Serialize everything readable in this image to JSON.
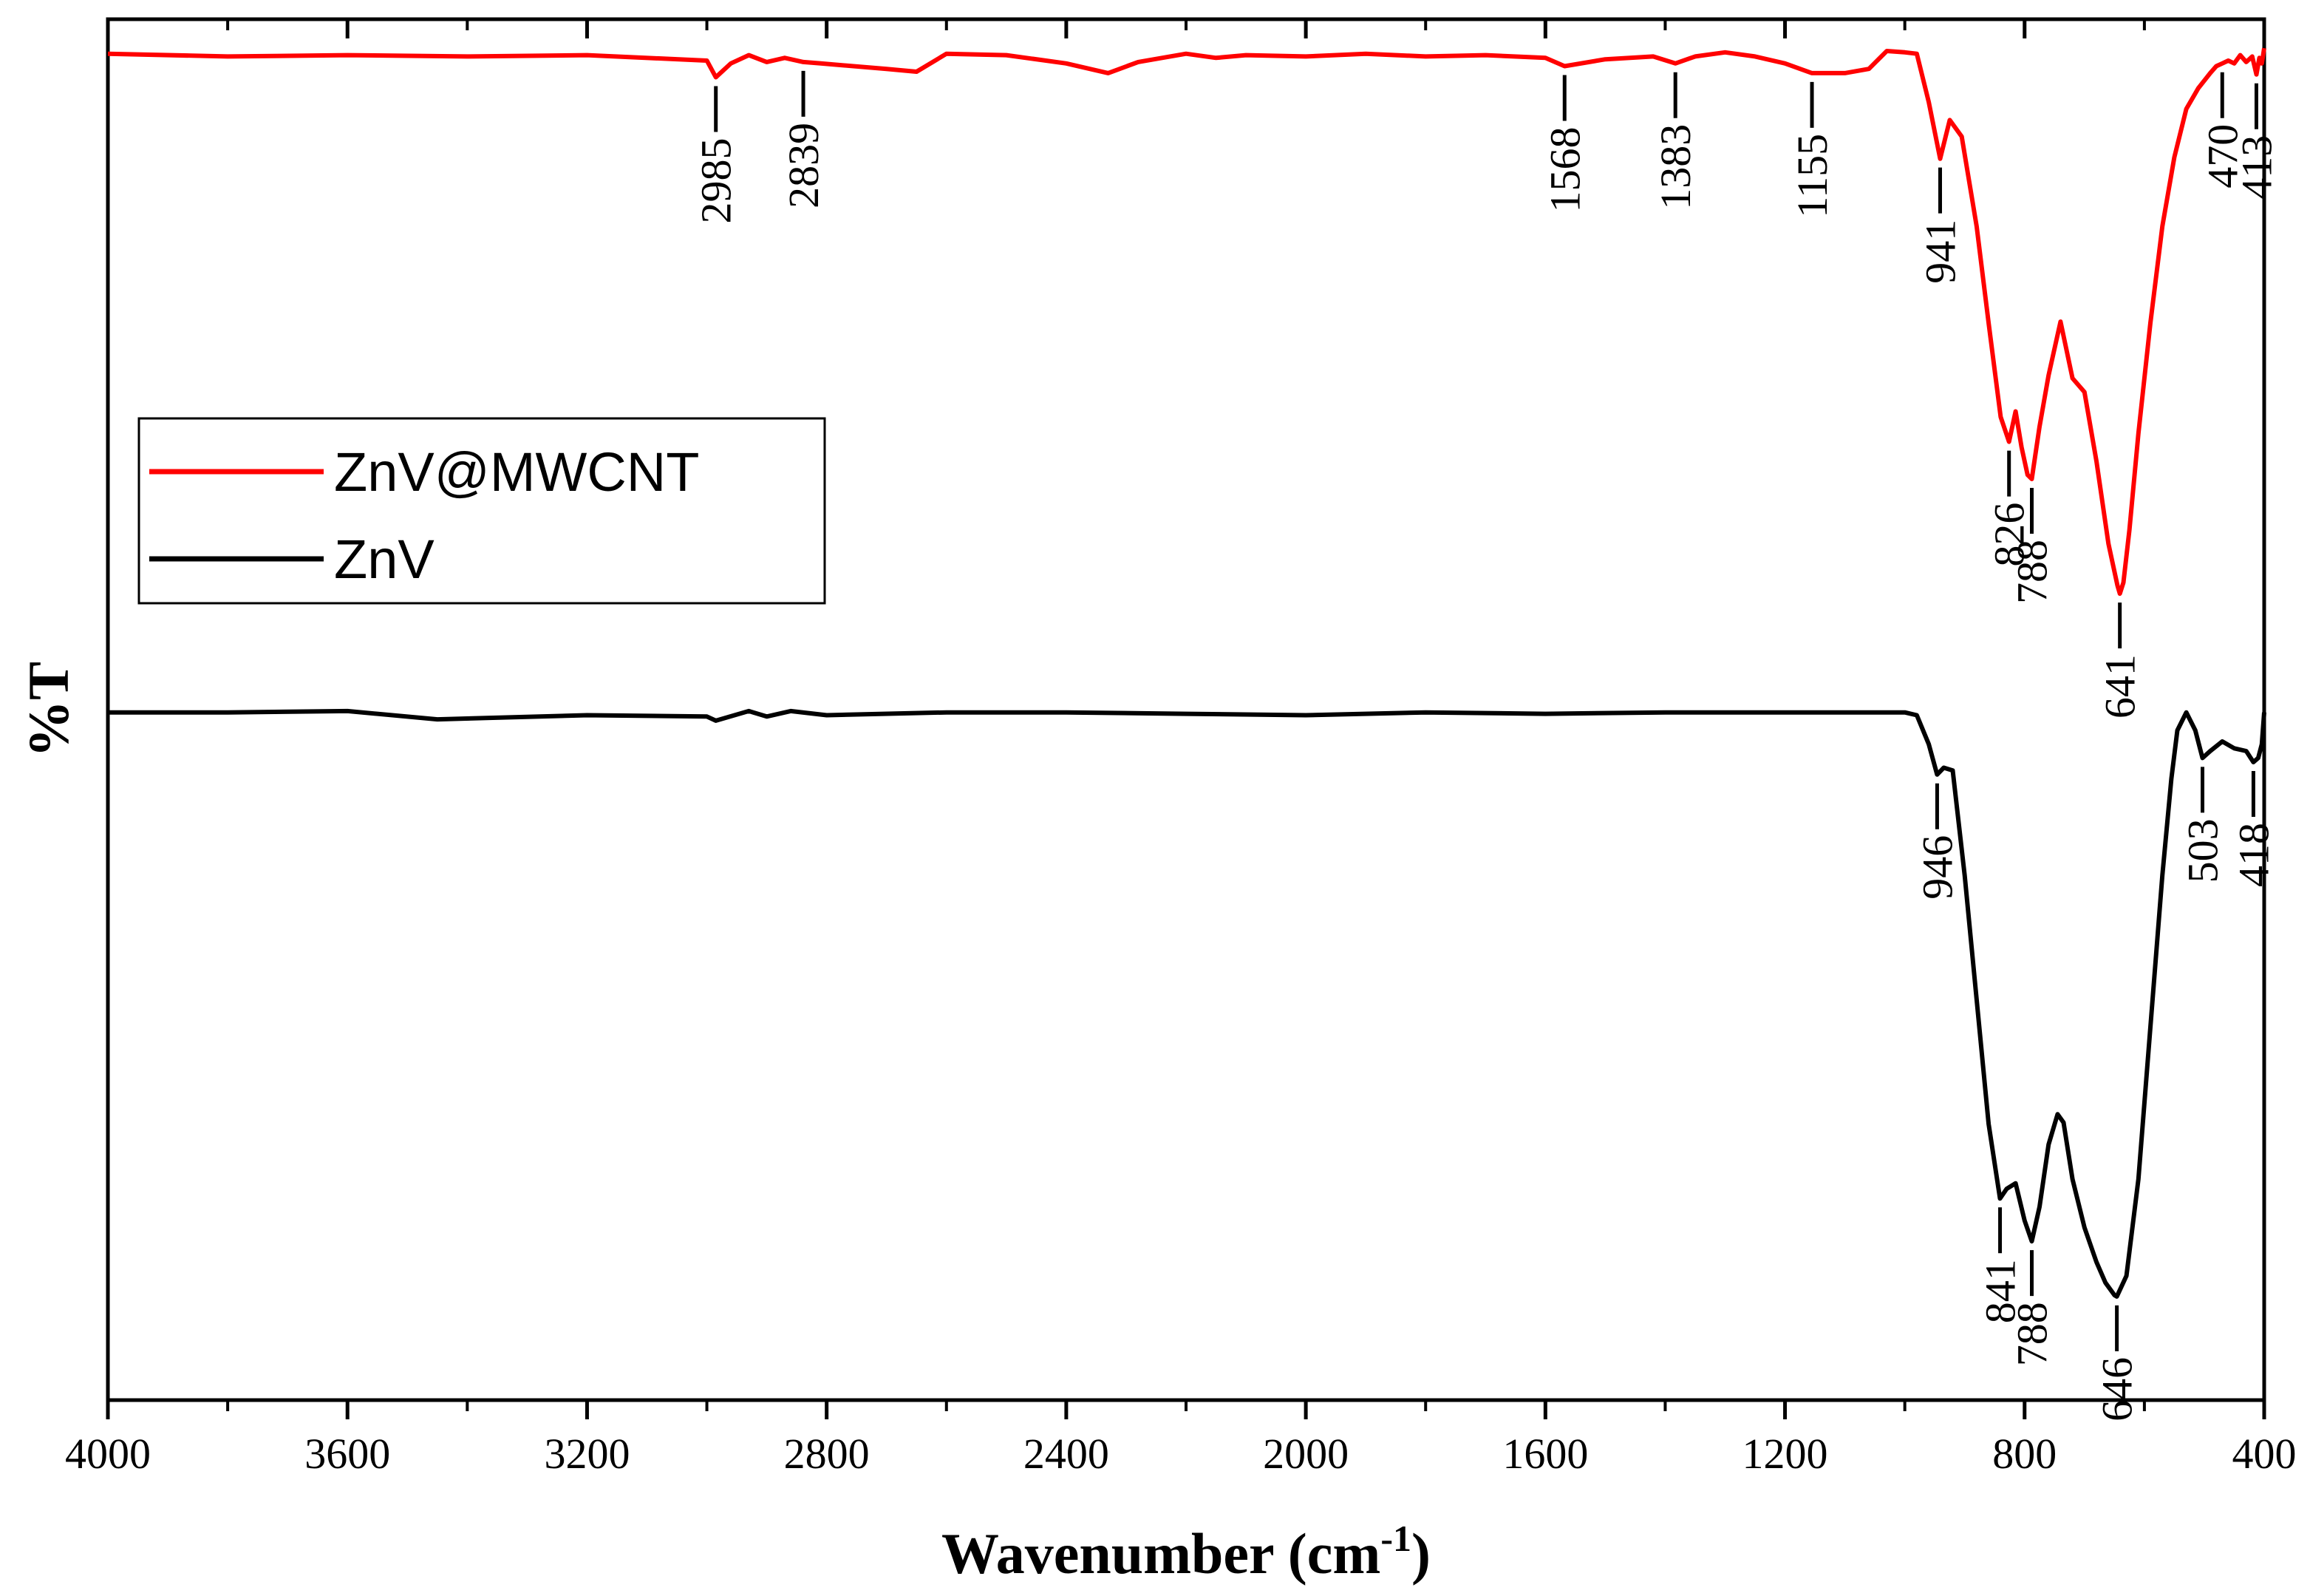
{
  "chart_data": {
    "type": "line",
    "title": "",
    "xlabel": "Wavenumber (cm",
    "xlabel_sup": "-1",
    "xlabel_end": ")",
    "ylabel": "%T",
    "xlim": [
      4000,
      400
    ],
    "ylim": [
      0,
      100
    ],
    "x_ticks": [
      4000,
      3600,
      3200,
      2800,
      2400,
      2000,
      1600,
      1200,
      800,
      400
    ],
    "x_tick_labels": [
      "4000",
      "3600",
      "3200",
      "2800",
      "2400",
      "2000",
      "1600",
      "1200",
      "800",
      "400"
    ],
    "legend": {
      "position": "top-left",
      "entries": [
        "ZnV@MWCNT",
        "ZnV"
      ]
    },
    "series": [
      {
        "name": "ZnV@MWCNT",
        "color": "#ff0000",
        "x": [
          4000,
          3800,
          3600,
          3400,
          3200,
          3000,
          2985,
          2960,
          2930,
          2900,
          2870,
          2839,
          2810,
          2700,
          2650,
          2600,
          2500,
          2400,
          2330,
          2280,
          2200,
          2150,
          2100,
          2000,
          1900,
          1800,
          1700,
          1600,
          1568,
          1500,
          1420,
          1383,
          1350,
          1300,
          1250,
          1200,
          1155,
          1100,
          1060,
          1030,
          1000,
          980,
          960,
          941,
          925,
          905,
          880,
          860,
          840,
          826,
          815,
          805,
          795,
          788,
          775,
          760,
          740,
          720,
          700,
          680,
          660,
          645,
          641,
          635,
          625,
          610,
          590,
          570,
          550,
          530,
          510,
          490,
          480,
          470,
          460,
          450,
          440,
          430,
          420,
          413,
          408,
          404,
          400
        ],
        "y": [
          97.5,
          97.3,
          97.4,
          97.3,
          97.4,
          97.0,
          95.8,
          96.8,
          97.4,
          96.9,
          97.2,
          96.9,
          96.8,
          96.4,
          96.2,
          97.5,
          97.4,
          96.8,
          96.1,
          96.9,
          97.5,
          97.2,
          97.4,
          97.3,
          97.5,
          97.3,
          97.4,
          97.2,
          96.6,
          97.1,
          97.3,
          96.8,
          97.3,
          97.6,
          97.3,
          96.8,
          96.1,
          96.1,
          96.4,
          97.7,
          97.6,
          97.5,
          94.0,
          89.9,
          92.7,
          91.5,
          85.0,
          78.0,
          71.2,
          69.4,
          71.6,
          69.0,
          67.0,
          66.7,
          70.5,
          74.2,
          78.1,
          74.0,
          73.0,
          68.0,
          62.0,
          59.0,
          58.4,
          59.2,
          63.0,
          70.0,
          78.0,
          85.0,
          90.0,
          93.5,
          95.0,
          96.1,
          96.6,
          96.8,
          97.0,
          96.8,
          97.4,
          96.9,
          97.3,
          96.0,
          97.2,
          96.8,
          97.9
        ]
      },
      {
        "name": "ZnV",
        "color": "#000000",
        "x": [
          4000,
          3800,
          3600,
          3450,
          3200,
          3000,
          2985,
          2930,
          2900,
          2860,
          2800,
          2600,
          2400,
          2200,
          2000,
          1800,
          1600,
          1400,
          1200,
          1100,
          1000,
          980,
          960,
          946,
          935,
          920,
          900,
          880,
          860,
          841,
          830,
          815,
          800,
          788,
          775,
          760,
          745,
          735,
          720,
          700,
          680,
          665,
          650,
          646,
          630,
          610,
          590,
          570,
          555,
          545,
          530,
          515,
          503,
          490,
          470,
          450,
          430,
          418,
          410,
          404,
          400
        ],
        "y": [
          49.8,
          49.8,
          49.9,
          49.3,
          49.6,
          49.5,
          49.2,
          49.9,
          49.5,
          49.9,
          49.6,
          49.8,
          49.8,
          49.7,
          49.6,
          49.8,
          49.7,
          49.8,
          49.8,
          49.8,
          49.8,
          49.6,
          47.5,
          45.3,
          45.8,
          45.6,
          38.0,
          29.0,
          20.0,
          14.6,
          15.3,
          15.7,
          13.0,
          11.5,
          14.0,
          18.5,
          20.7,
          20.1,
          16.0,
          12.5,
          10.0,
          8.5,
          7.6,
          7.5,
          9.0,
          16.0,
          27.0,
          38.0,
          45.0,
          48.5,
          49.8,
          48.5,
          46.5,
          47.0,
          47.7,
          47.2,
          47.0,
          46.2,
          46.5,
          47.5,
          49.8
        ]
      }
    ],
    "annotations": [
      {
        "series": "ZnV@MWCNT",
        "label": "2985",
        "x": 2985
      },
      {
        "series": "ZnV@MWCNT",
        "label": "2839",
        "x": 2839
      },
      {
        "series": "ZnV@MWCNT",
        "label": "1568",
        "x": 1568
      },
      {
        "series": "ZnV@MWCNT",
        "label": "1383",
        "x": 1383
      },
      {
        "series": "ZnV@MWCNT",
        "label": "1155",
        "x": 1155
      },
      {
        "series": "ZnV@MWCNT",
        "label": "941",
        "x": 941
      },
      {
        "series": "ZnV@MWCNT",
        "label": "826",
        "x": 826
      },
      {
        "series": "ZnV@MWCNT",
        "label": "788",
        "x": 788
      },
      {
        "series": "ZnV@MWCNT",
        "label": "641",
        "x": 641
      },
      {
        "series": "ZnV@MWCNT",
        "label": "470",
        "x": 470
      },
      {
        "series": "ZnV@MWCNT",
        "label": "413",
        "x": 413
      },
      {
        "series": "ZnV",
        "label": "946",
        "x": 946
      },
      {
        "series": "ZnV",
        "label": "841",
        "x": 841
      },
      {
        "series": "ZnV",
        "label": "788",
        "x": 788
      },
      {
        "series": "ZnV",
        "label": "646",
        "x": 646
      },
      {
        "series": "ZnV",
        "label": "503",
        "x": 503
      },
      {
        "series": "ZnV",
        "label": "418",
        "x": 418
      }
    ]
  }
}
